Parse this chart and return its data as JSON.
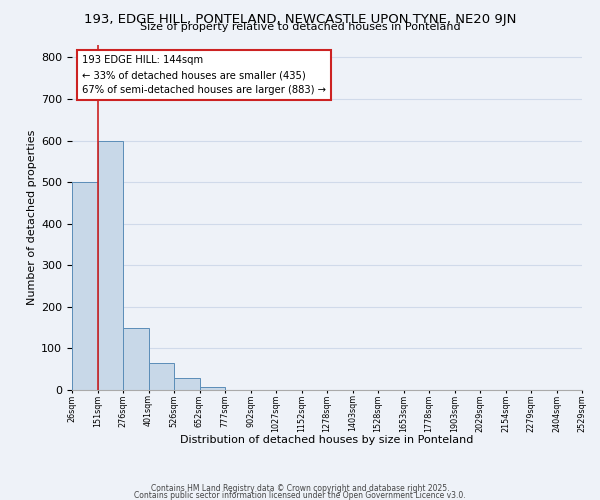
{
  "title": "193, EDGE HILL, PONTELAND, NEWCASTLE UPON TYNE, NE20 9JN",
  "subtitle": "Size of property relative to detached houses in Ponteland",
  "xlabel": "Distribution of detached houses by size in Ponteland",
  "ylabel": "Number of detached properties",
  "bar_values": [
    500,
    600,
    150,
    65,
    28,
    8,
    0,
    0,
    0,
    0,
    0,
    0,
    0,
    0,
    0,
    0,
    0,
    0,
    0,
    0
  ],
  "bin_labels": [
    "26sqm",
    "151sqm",
    "276sqm",
    "401sqm",
    "526sqm",
    "652sqm",
    "777sqm",
    "902sqm",
    "1027sqm",
    "1152sqm",
    "1278sqm",
    "1403sqm",
    "1528sqm",
    "1653sqm",
    "1778sqm",
    "1903sqm",
    "2029sqm",
    "2154sqm",
    "2279sqm",
    "2404sqm",
    "2529sqm"
  ],
  "bar_color": "#c8d8e8",
  "bar_edge_color": "#5b8db8",
  "grid_color": "#d0daea",
  "background_color": "#eef2f8",
  "red_line_x": 1.0,
  "red_line_color": "#cc2222",
  "annotation_text": "193 EDGE HILL: 144sqm\n← 33% of detached houses are smaller (435)\n67% of semi-detached houses are larger (883) →",
  "annotation_box_color": "#ffffff",
  "annotation_border_color": "#cc2222",
  "ylim": [
    0,
    830
  ],
  "yticks": [
    0,
    100,
    200,
    300,
    400,
    500,
    600,
    700,
    800
  ],
  "footer_line1": "Contains HM Land Registry data © Crown copyright and database right 2025.",
  "footer_line2": "Contains public sector information licensed under the Open Government Licence v3.0."
}
